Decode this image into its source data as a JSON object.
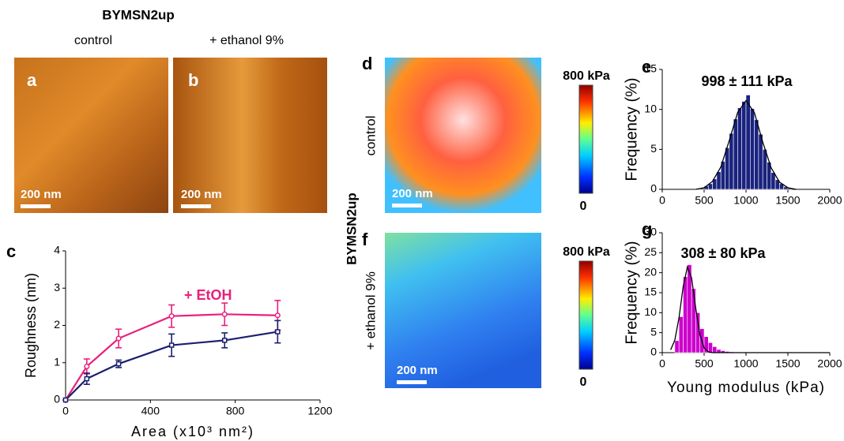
{
  "figure": {
    "title": "BYMSN2up",
    "columns": [
      "control",
      "+ ethanol 9%"
    ],
    "panel_labels": [
      "a",
      "b",
      "c",
      "d",
      "e",
      "f",
      "g"
    ],
    "scale_bars": [
      "200 nm",
      "200 nm",
      "200 nm",
      "200 nm"
    ],
    "map_rows": [
      "control",
      "+ ethanol 9%"
    ],
    "map_strain": "BYMSN2up",
    "colorbars": [
      {
        "max_label": "800 kPa",
        "min_label": "0"
      },
      {
        "max_label": "800 kPa",
        "min_label": "0"
      }
    ]
  },
  "chart_data": [
    {
      "type": "line",
      "xlabel": "Area (x10³ nm²)",
      "ylabel": "Roughness (nm)",
      "x": [
        0,
        100,
        250,
        500,
        750,
        1000
      ],
      "series": [
        {
          "name": "+ EtOH",
          "color": "#e8207c",
          "marker": "circle",
          "values": [
            0,
            0.9,
            1.65,
            2.25,
            2.3,
            2.27
          ],
          "errors": [
            0,
            0.2,
            0.25,
            0.3,
            0.3,
            0.4
          ]
        },
        {
          "color": "#1c1f6e",
          "marker": "square",
          "values": [
            0,
            0.57,
            0.97,
            1.47,
            1.6,
            1.83
          ],
          "errors": [
            0,
            0.15,
            0.1,
            0.3,
            0.2,
            0.3
          ]
        }
      ],
      "xlim": [
        0,
        1200
      ],
      "xticks": [
        0,
        400,
        800,
        1200
      ],
      "ylim": [
        0,
        4
      ],
      "yticks": [
        0,
        1,
        2,
        3,
        4
      ],
      "grid": false
    },
    {
      "type": "histogram",
      "ylabel": "Frequency (%)",
      "annotation": "998 ±  111 kPa",
      "color": "#1a237e",
      "bins": [
        400,
        450,
        500,
        550,
        600,
        650,
        700,
        750,
        800,
        850,
        900,
        950,
        1000,
        1050,
        1100,
        1150,
        1200,
        1250,
        1300,
        1350,
        1400,
        1450,
        1500,
        1550
      ],
      "counts": [
        0.1,
        0.2,
        0.4,
        0.7,
        1.3,
        2.2,
        3.5,
        5.2,
        7.0,
        8.8,
        10.2,
        11.0,
        11.8,
        10.1,
        8.7,
        6.9,
        5.0,
        3.4,
        2.1,
        1.2,
        0.7,
        0.3,
        0.2
      ],
      "fit": {
        "x": [
          400,
          500,
          600,
          700,
          800,
          900,
          1000,
          1100,
          1200,
          1300,
          1400,
          1500,
          1600
        ],
        "values": [
          0,
          0.2,
          1.0,
          2.8,
          6.1,
          9.6,
          11.1,
          9.6,
          5.9,
          2.7,
          0.9,
          0.2,
          0
        ]
      },
      "xlim": [
        0,
        2000
      ],
      "xticks": [
        0,
        500,
        1000,
        1500,
        2000
      ],
      "ylim": [
        0,
        15
      ],
      "yticks": [
        0,
        5,
        10,
        15
      ],
      "grid": false
    },
    {
      "type": "histogram",
      "xlabel": "Young modulus (kPa)",
      "ylabel": "Frequency (%)",
      "annotation": "308 ±  80 kPa",
      "color": "#cc00cc",
      "bins": [
        150,
        200,
        250,
        300,
        350,
        400,
        450,
        500,
        550,
        600,
        650,
        700,
        750,
        800,
        850,
        900
      ],
      "counts": [
        3,
        9,
        19,
        22,
        16,
        10,
        6,
        4,
        2.5,
        1.5,
        0.8,
        0.5,
        0.3,
        0.2,
        0.1
      ],
      "fit": {
        "x": [
          100,
          150,
          200,
          250,
          300,
          350,
          400,
          450,
          500,
          550,
          600,
          2000
        ],
        "values": [
          0.7,
          3.1,
          8.7,
          16.5,
          21.4,
          18.7,
          11.1,
          4.5,
          1.2,
          0.2,
          0,
          0
        ]
      },
      "xlim": [
        0,
        2000
      ],
      "xticks": [
        0,
        500,
        1000,
        1500,
        2000
      ],
      "ylim": [
        0,
        30
      ],
      "yticks": [
        0,
        5,
        10,
        15,
        20,
        25,
        30
      ],
      "grid": false
    }
  ]
}
